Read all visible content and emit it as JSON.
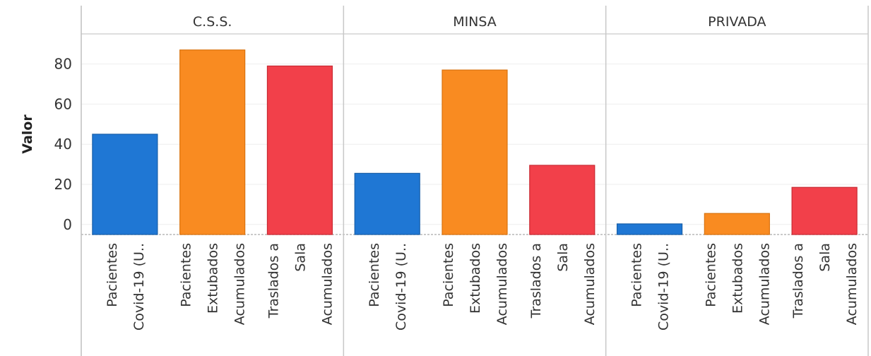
{
  "chart_data": {
    "type": "bar",
    "title": "",
    "ylabel": "Valor",
    "ylim": [
      -5,
      95
    ],
    "yticks": [
      0,
      20,
      40,
      60,
      80
    ],
    "grid": true,
    "panels": [
      "C.S.S.",
      "MINSA",
      "PRIVADA"
    ],
    "categories": [
      [
        "Pacientes",
        "Covid-19 (U.."
      ],
      [
        "Pacientes",
        "Extubados",
        "Acumulados"
      ],
      [
        "Traslados a",
        "Sala",
        "Acumulados"
      ]
    ],
    "category_colors": [
      "#1f77d4",
      "#f98b21",
      "#f2404a"
    ],
    "category_edge_colors": [
      "#175ea8",
      "#d9730f",
      "#c92a33"
    ],
    "values": [
      [
        45,
        87,
        79
      ],
      [
        25.5,
        77,
        29.5
      ],
      [
        0.3,
        5.5,
        18.5
      ]
    ]
  }
}
